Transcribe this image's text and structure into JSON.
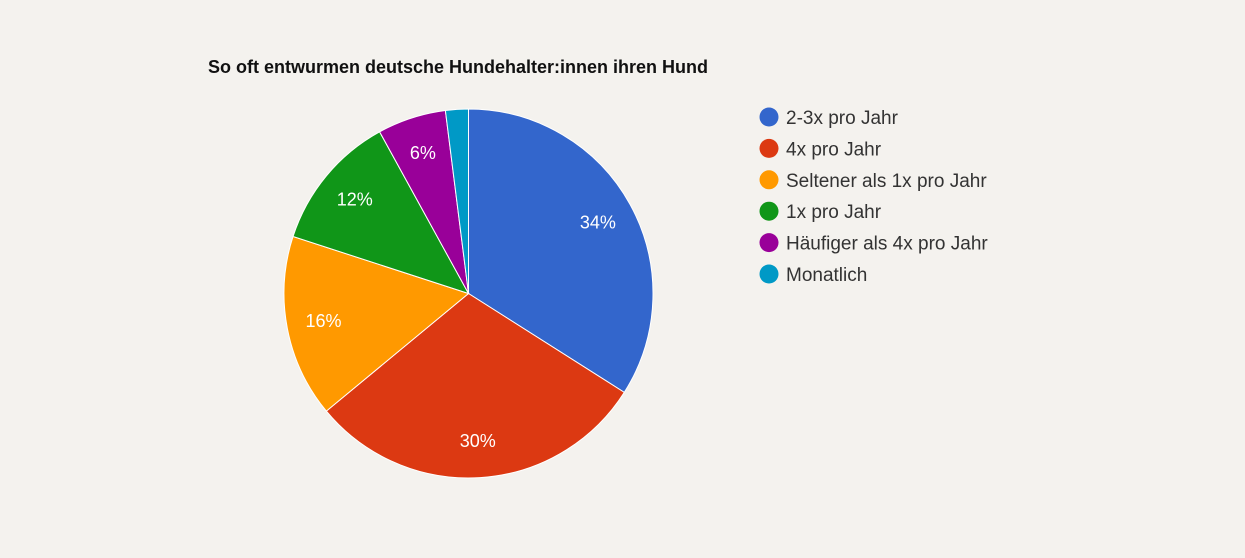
{
  "chart_data": {
    "type": "pie",
    "title": "So oft entwurmen deutsche Hundehalter:innen ihren Hund",
    "categories": [
      "2-3x pro Jahr",
      "4x pro Jahr",
      "Seltener als 1x pro Jahr",
      "1x pro Jahr",
      "Häufiger als 4x pro Jahr",
      "Monatlich"
    ],
    "values": [
      34,
      30,
      16,
      12,
      6,
      2
    ],
    "labels": [
      "34%",
      "30%",
      "16%",
      "12%",
      "6%",
      ""
    ],
    "colors": [
      "#3366cc",
      "#dc3912",
      "#ff9900",
      "#109618",
      "#990099",
      "#0099c6"
    ],
    "legend_position": "right",
    "start": "top, clockwise"
  }
}
